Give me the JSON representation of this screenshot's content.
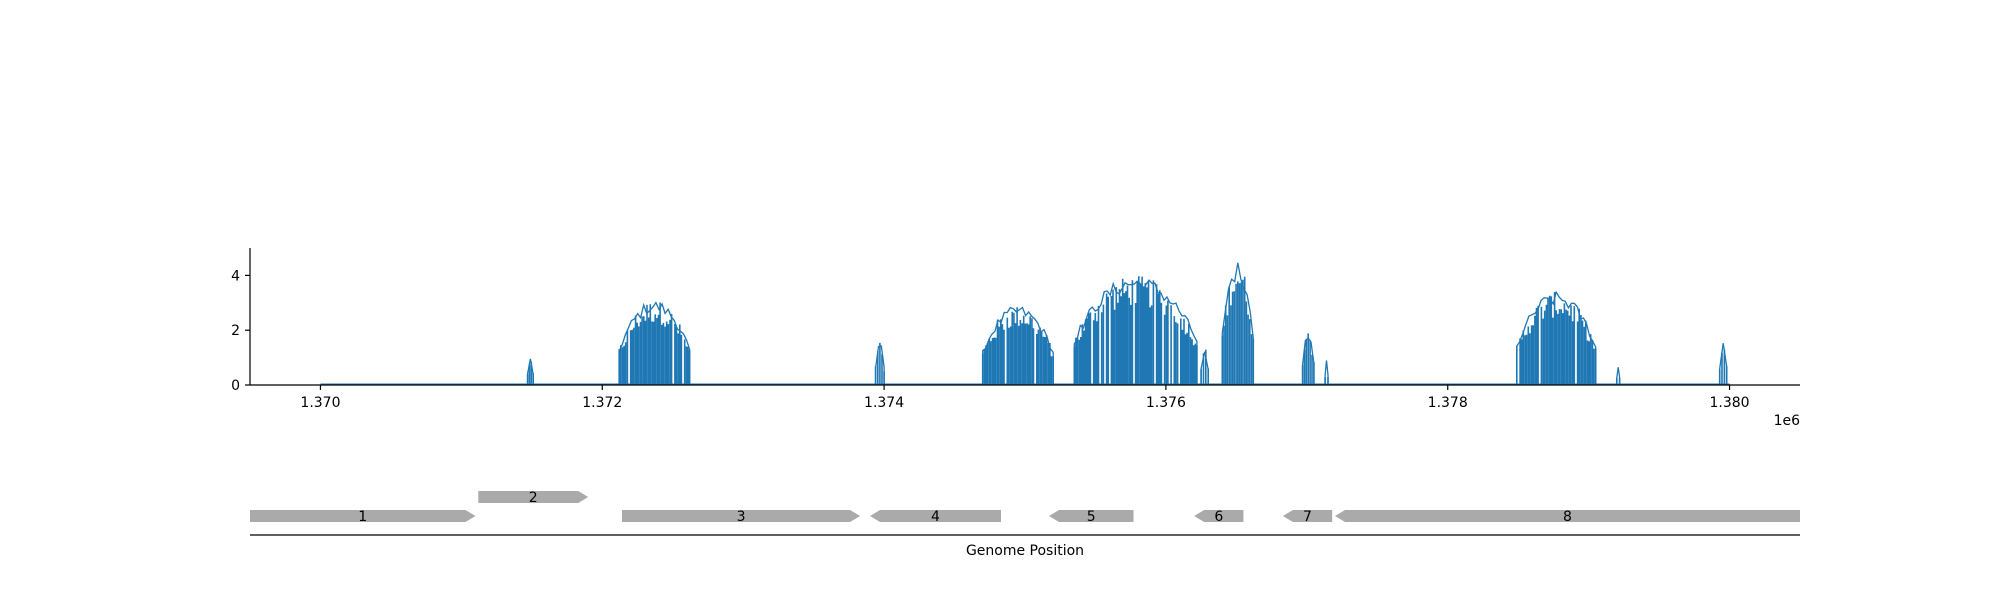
{
  "chart_data": {
    "type": "line",
    "title": "",
    "xlabel": "",
    "ylabel": "",
    "x_offset_label": "1e6",
    "xlim": [
      1369.5,
      1380.5
    ],
    "ylim": [
      0,
      5
    ],
    "x_ticks": [
      1370,
      1372,
      1374,
      1376,
      1378,
      1380
    ],
    "x_tick_labels": [
      "1.370",
      "1.372",
      "1.374",
      "1.376",
      "1.378",
      "1.380"
    ],
    "y_ticks": [
      0,
      2,
      4
    ],
    "y_tick_labels": [
      "0",
      "2",
      "4"
    ],
    "grid": false,
    "line_color": "#1f77b4",
    "baseline_range": [
      1370.0,
      1380.0
    ],
    "signal_regions": [
      {
        "start": 1371.47,
        "end": 1371.51,
        "peak": 1.0
      },
      {
        "start": 1372.12,
        "end": 1372.62,
        "peak": 3.1
      },
      {
        "start": 1373.94,
        "end": 1374.0,
        "peak": 1.6
      },
      {
        "start": 1374.7,
        "end": 1375.2,
        "peak": 2.9
      },
      {
        "start": 1375.35,
        "end": 1376.22,
        "peak": 4.0
      },
      {
        "start": 1376.25,
        "end": 1376.3,
        "peak": 1.4
      },
      {
        "start": 1376.4,
        "end": 1376.62,
        "peak": 4.5
      },
      {
        "start": 1376.97,
        "end": 1377.05,
        "peak": 2.0
      },
      {
        "start": 1377.13,
        "end": 1377.15,
        "peak": 0.9
      },
      {
        "start": 1378.49,
        "end": 1379.05,
        "peak": 3.4
      },
      {
        "start": 1379.2,
        "end": 1379.22,
        "peak": 0.7
      },
      {
        "start": 1379.93,
        "end": 1379.98,
        "peak": 1.6
      }
    ]
  },
  "gene_track": {
    "xlabel": "Genome Position",
    "color": "#aaaaaa",
    "genes": [
      {
        "label": "1",
        "start": 1369.5,
        "end": 1371.1,
        "strand": "+",
        "row": 0
      },
      {
        "label": "2",
        "start": 1371.12,
        "end": 1371.9,
        "strand": "+",
        "row": 1
      },
      {
        "label": "3",
        "start": 1372.14,
        "end": 1373.83,
        "strand": "+",
        "row": 0
      },
      {
        "label": "4",
        "start": 1373.9,
        "end": 1374.83,
        "strand": "-",
        "row": 0
      },
      {
        "label": "5",
        "start": 1375.17,
        "end": 1375.77,
        "strand": "-",
        "row": 0
      },
      {
        "label": "6",
        "start": 1376.2,
        "end": 1376.55,
        "strand": "-",
        "row": 0
      },
      {
        "label": "7",
        "start": 1376.83,
        "end": 1377.18,
        "strand": "-",
        "row": 0
      },
      {
        "label": "8",
        "start": 1377.2,
        "end": 1380.5,
        "strand": "-",
        "row": 0
      }
    ]
  }
}
